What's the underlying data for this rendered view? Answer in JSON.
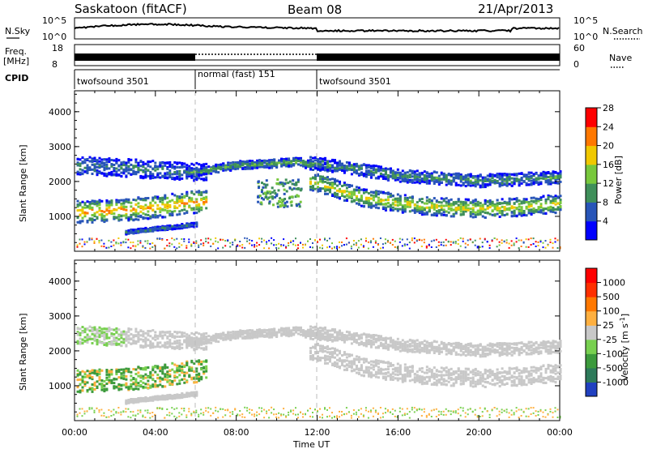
{
  "header": {
    "station": "Saskatoon (fitACF)",
    "beam": "Beam 08",
    "date": "21/Apr/2013"
  },
  "noise_panel": {
    "left_label": "N.Sky",
    "right_label": "N.Search",
    "y_top": "10^5",
    "y_bottom": "10^0",
    "y_top_right": "10^5",
    "y_bottom_right": "10^0"
  },
  "freq_panel": {
    "left_label_line1": "Freq.",
    "left_label_line2": "[MHz]",
    "y_top": "18",
    "y_bottom": "8",
    "right_label": "Nave",
    "y_top_right": "60",
    "y_bottom_right": "0"
  },
  "cpid": {
    "label": "CPID",
    "segments": [
      {
        "name": "twofsound 3501",
        "start": 0,
        "end": 6
      },
      {
        "name": "normal (fast) 151",
        "start": 6,
        "end": 12
      },
      {
        "name": "twofsound 3501",
        "start": 12,
        "end": 24
      }
    ]
  },
  "chart_data": [
    {
      "type": "heatmap",
      "title": "",
      "xlabel": "Time UT",
      "ylabel": "Slant Range [km]",
      "xlim": [
        0,
        24
      ],
      "ylim": [
        0,
        4600
      ],
      "x_ticks": [
        "00:00",
        "04:00",
        "08:00",
        "12:00",
        "16:00",
        "20:00",
        "00:00"
      ],
      "y_ticks": [
        "1000",
        "2000",
        "3000",
        "4000"
      ],
      "colorbar": {
        "label": "Power [dB]",
        "ticks": [
          "4",
          "8",
          "12",
          "16",
          "20",
          "24",
          "28"
        ],
        "colors": [
          "#0000ff",
          "#2855b8",
          "#3f8f5a",
          "#78c83c",
          "#f0c800",
          "#ff7800",
          "#ff0000"
        ],
        "range": [
          0,
          32
        ]
      },
      "bands": [
        {
          "t": [
            0,
            1,
            2,
            3,
            4,
            5,
            6
          ],
          "range_km": [
            1150,
            1200,
            1250,
            1300,
            1400,
            1500,
            1700
          ],
          "value": 24
        },
        {
          "t": [
            6,
            8,
            10,
            11,
            12
          ],
          "range_km": [
            2300,
            2500,
            2550,
            2600,
            2500
          ],
          "value": 14
        },
        {
          "t": [
            12,
            14,
            16,
            18,
            20,
            22,
            24
          ],
          "range_km": [
            2000,
            1600,
            1400,
            1300,
            1250,
            1300,
            1400
          ],
          "value": 20
        }
      ]
    },
    {
      "type": "heatmap",
      "title": "",
      "xlabel": "Time UT",
      "ylabel": "Slant Range [km]",
      "xlim": [
        0,
        24
      ],
      "ylim": [
        0,
        4600
      ],
      "x_ticks": [
        "00:00",
        "04:00",
        "08:00",
        "12:00",
        "16:00",
        "20:00",
        "00:00"
      ],
      "y_ticks": [
        "1000",
        "2000",
        "3000",
        "4000"
      ],
      "colorbar": {
        "label": "Velocity [m s^-1]",
        "ticks": [
          "1000",
          "500",
          "100",
          "25",
          "-25",
          "-100",
          "-500",
          "-1000"
        ],
        "colors": [
          "#2040c0",
          "#2d7a5a",
          "#3c9a3c",
          "#78d050",
          "#c8c8c8",
          "#ffb040",
          "#ff7800",
          "#ff3000",
          "#ff0000"
        ],
        "range": [
          -1000,
          1000
        ]
      }
    }
  ]
}
